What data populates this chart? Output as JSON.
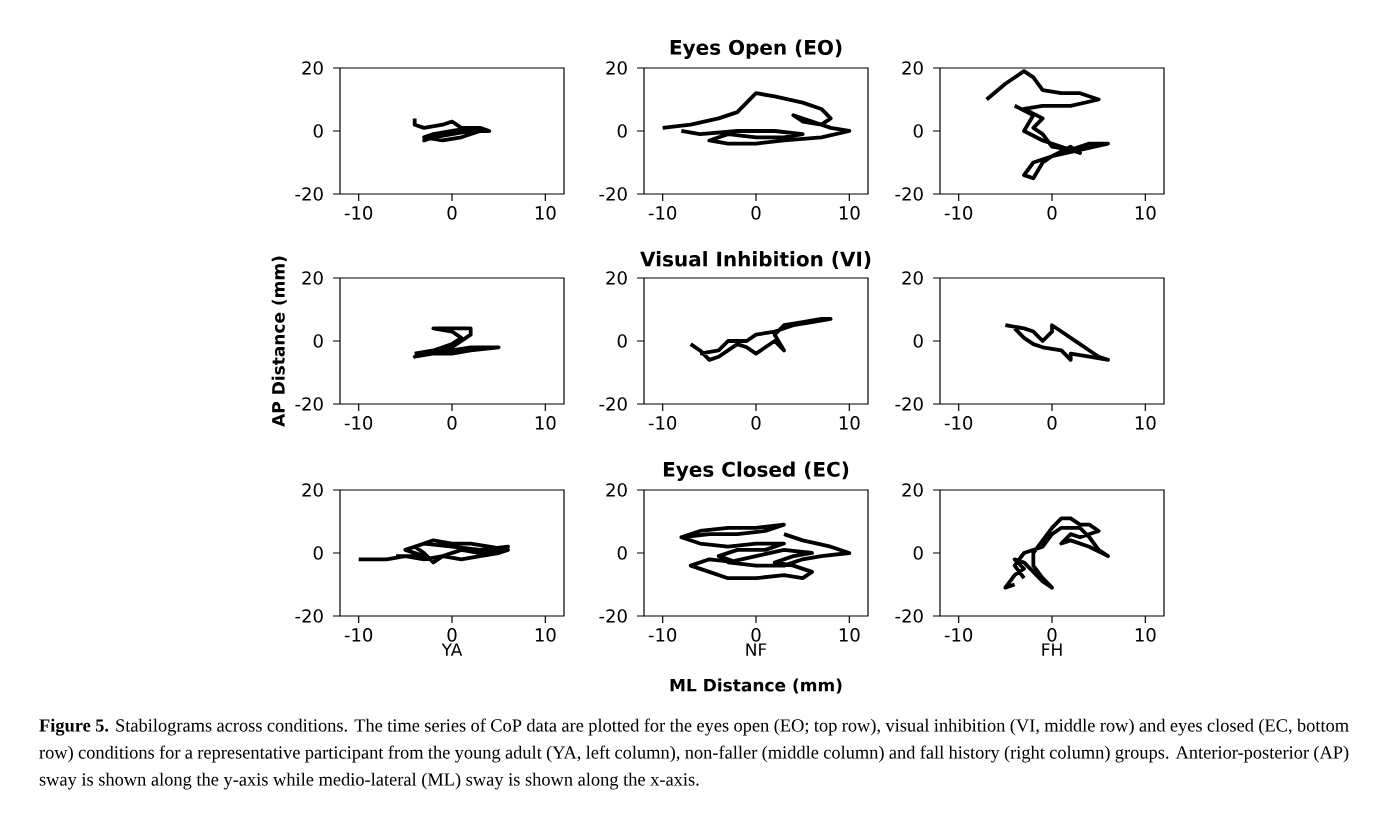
{
  "chart_data": [
    {
      "type": "line",
      "x": [
        -4,
        -4,
        -3,
        -1,
        0,
        1,
        3,
        4,
        2,
        0,
        -2,
        -3,
        -1,
        1,
        2,
        0,
        -2,
        -3,
        -1,
        1,
        3
      ],
      "values": [
        4,
        2,
        1,
        2,
        3,
        1,
        1,
        0,
        0,
        -1,
        -2,
        -3,
        -1,
        0,
        1,
        0,
        -1,
        -2,
        -3,
        -2,
        0
      ],
      "color": "#000000",
      "xlim": [
        -12,
        12
      ],
      "ylim": [
        -20,
        20
      ],
      "xticks": [
        -10,
        0,
        10
      ],
      "yticks": [
        -20,
        0,
        20
      ]
    },
    {
      "type": "line",
      "title": "Eyes Open (EO)",
      "x": [
        -10,
        -7,
        -4,
        -2,
        -1,
        0,
        2,
        5,
        7,
        8,
        7,
        5,
        4,
        6,
        8,
        10,
        7,
        3,
        0,
        -3,
        -5,
        -3,
        0,
        3,
        5,
        2,
        -2,
        -6,
        -8
      ],
      "values": [
        1,
        2,
        4,
        6,
        9,
        12,
        11,
        9,
        7,
        4,
        2,
        3,
        5,
        3,
        1,
        0,
        -2,
        -3,
        -4,
        -4,
        -3,
        -1,
        -2,
        -2,
        -1,
        0,
        0,
        -1,
        0
      ],
      "color": "#000000",
      "xlim": [
        -12,
        12
      ],
      "ylim": [
        -20,
        20
      ],
      "xticks": [
        -10,
        0,
        10
      ],
      "yticks": [
        -20,
        0,
        20
      ]
    },
    {
      "type": "line",
      "x": [
        -7,
        -5,
        -3,
        -2,
        -1,
        1,
        3,
        5,
        2,
        -1,
        -3,
        -1,
        -2,
        -1,
        0,
        2,
        4,
        6,
        3,
        0,
        -2,
        -3,
        -2,
        -1,
        0,
        2,
        3,
        -1,
        -3,
        -2,
        -4
      ],
      "values": [
        10,
        15,
        19,
        17,
        13,
        12,
        12,
        10,
        8,
        8,
        7,
        4,
        1,
        -1,
        -5,
        -6,
        -4,
        -4,
        -6,
        -8,
        -10,
        -14,
        -15,
        -10,
        -8,
        -5,
        -7,
        -3,
        0,
        5,
        8
      ],
      "color": "#000000",
      "xlim": [
        -12,
        12
      ],
      "ylim": [
        -20,
        20
      ],
      "xticks": [
        -10,
        0,
        10
      ],
      "yticks": [
        -20,
        0,
        20
      ]
    },
    {
      "type": "line",
      "ylabel": "AP Distance (mm)",
      "x": [
        -4,
        0,
        2,
        5,
        2,
        0,
        -3,
        -4,
        -2,
        0,
        2,
        2,
        -2,
        0,
        1,
        0,
        -2,
        -4
      ],
      "values": [
        -5,
        -3,
        -2,
        -2,
        -3,
        -4,
        -4,
        -5,
        -3,
        -2,
        2,
        4,
        4,
        3,
        1,
        -1,
        -3,
        -4
      ],
      "color": "#000000",
      "xlim": [
        -12,
        12
      ],
      "ylim": [
        -20,
        20
      ],
      "xticks": [
        -10,
        0,
        10
      ],
      "yticks": [
        -20,
        0,
        20
      ]
    },
    {
      "type": "line",
      "title": "Visual Inhibition (VI)",
      "x": [
        -7,
        -6,
        -5,
        -4,
        -3,
        -2,
        -1,
        0,
        1,
        2,
        3,
        2,
        3,
        5,
        7,
        8,
        6,
        4,
        2,
        0,
        -1,
        -3,
        -4,
        -6
      ],
      "values": [
        -1,
        -3,
        -6,
        -5,
        -3,
        -1,
        -2,
        -4,
        -2,
        0,
        -3,
        2,
        5,
        6,
        7,
        7,
        6,
        5,
        3,
        2,
        0,
        0,
        -3,
        -4
      ],
      "color": "#000000",
      "xlim": [
        -12,
        12
      ],
      "ylim": [
        -20,
        20
      ],
      "xticks": [
        -10,
        0,
        10
      ],
      "yticks": [
        -20,
        0,
        20
      ]
    },
    {
      "type": "line",
      "x": [
        -5,
        -3,
        -2,
        -1,
        0,
        0,
        1,
        2,
        3,
        4,
        5,
        6,
        4,
        2,
        2,
        1,
        -1,
        -2,
        -3,
        -4
      ],
      "values": [
        5,
        4,
        3,
        0,
        3,
        5,
        3,
        1,
        -1,
        -3,
        -5,
        -6,
        -5,
        -4,
        -6,
        -3,
        -2,
        -1,
        1,
        4
      ],
      "color": "#000000",
      "xlim": [
        -12,
        12
      ],
      "ylim": [
        -20,
        20
      ],
      "xticks": [
        -10,
        0,
        10
      ],
      "yticks": [
        -20,
        0,
        20
      ]
    },
    {
      "type": "line",
      "xlabel": "YA",
      "x": [
        -10,
        -7,
        -5,
        -3,
        -1,
        1,
        3,
        5,
        6,
        4,
        2,
        0,
        -2,
        -4,
        -3,
        -2,
        -1,
        1,
        3,
        5,
        6,
        3,
        0,
        -3,
        -5,
        -3,
        -6
      ],
      "values": [
        -2,
        -2,
        -1,
        -2,
        -1,
        -2,
        -1,
        0,
        1,
        2,
        3,
        3,
        4,
        2,
        0,
        -3,
        -1,
        1,
        0,
        1,
        2,
        1,
        2,
        3,
        1,
        -1,
        -1
      ],
      "color": "#000000",
      "xlim": [
        -12,
        12
      ],
      "ylim": [
        -20,
        20
      ],
      "xticks": [
        -10,
        0,
        10
      ],
      "yticks": [
        -20,
        0,
        20
      ]
    },
    {
      "type": "line",
      "title": "Eyes Closed (EC)",
      "xlabel": "NF",
      "annotations": [
        "ML Distance (mm)"
      ],
      "x": [
        -8,
        -6,
        -3,
        0,
        3,
        1,
        -2,
        -5,
        -8,
        -6,
        -3,
        0,
        3,
        1,
        -2,
        -4,
        -2,
        -5,
        -7,
        -5,
        -3,
        0,
        3,
        5,
        6,
        4,
        2,
        4,
        6,
        3,
        0,
        -3,
        0,
        3,
        5,
        7,
        10,
        8,
        5,
        3
      ],
      "values": [
        5,
        7,
        8,
        8,
        9,
        7,
        6,
        6,
        5,
        3,
        2,
        3,
        3,
        1,
        1,
        -1,
        -3,
        -2,
        -4,
        -6,
        -8,
        -8,
        -7,
        -8,
        -6,
        -4,
        -3,
        -1,
        0,
        1,
        -1,
        -3,
        -4,
        -4,
        -2,
        -1,
        0,
        2,
        4,
        6
      ],
      "color": "#000000",
      "xlim": [
        -12,
        12
      ],
      "ylim": [
        -20,
        20
      ],
      "xticks": [
        -10,
        0,
        10
      ],
      "yticks": [
        -20,
        0,
        20
      ]
    },
    {
      "type": "line",
      "xlabel": "FH",
      "annotations": [
        "**Figure 5.** Stabilograms across conditions. The time series of CoP data are plotted for the eyes open (EO; top row), visual inhibition (VI, middle row) and eyes closed (EC, bottom row) conditions for a representative participant from the young adult (YA, left column), non-faller (middle column) and fall history (right column) groups. Anterior-posterior (AP) sway is shown along the y-axis while medio-lateral (ML) sway is shown along the x-axis."
      ],
      "x": [
        -4,
        -5,
        -4,
        -3,
        -4,
        -3,
        -2,
        -1,
        0,
        -1,
        -2,
        -2,
        -1,
        0,
        1,
        2,
        3,
        4,
        5,
        3,
        2,
        1,
        2,
        4,
        6,
        5,
        4,
        3,
        1,
        0,
        -1,
        -3,
        -4,
        -3
      ],
      "values": [
        -10,
        -11,
        -7,
        -5,
        -2,
        -3,
        -6,
        -9,
        -11,
        -8,
        -4,
        0,
        4,
        8,
        11,
        11,
        9,
        9,
        7,
        5,
        6,
        3,
        4,
        2,
        -1,
        1,
        5,
        8,
        8,
        6,
        2,
        0,
        -4,
        -8
      ],
      "color": "#000000",
      "xlim": [
        -12,
        12
      ],
      "ylim": [
        -20,
        20
      ],
      "xticks": [
        -10,
        0,
        10
      ],
      "yticks": [
        -20,
        0,
        20
      ]
    }
  ]
}
